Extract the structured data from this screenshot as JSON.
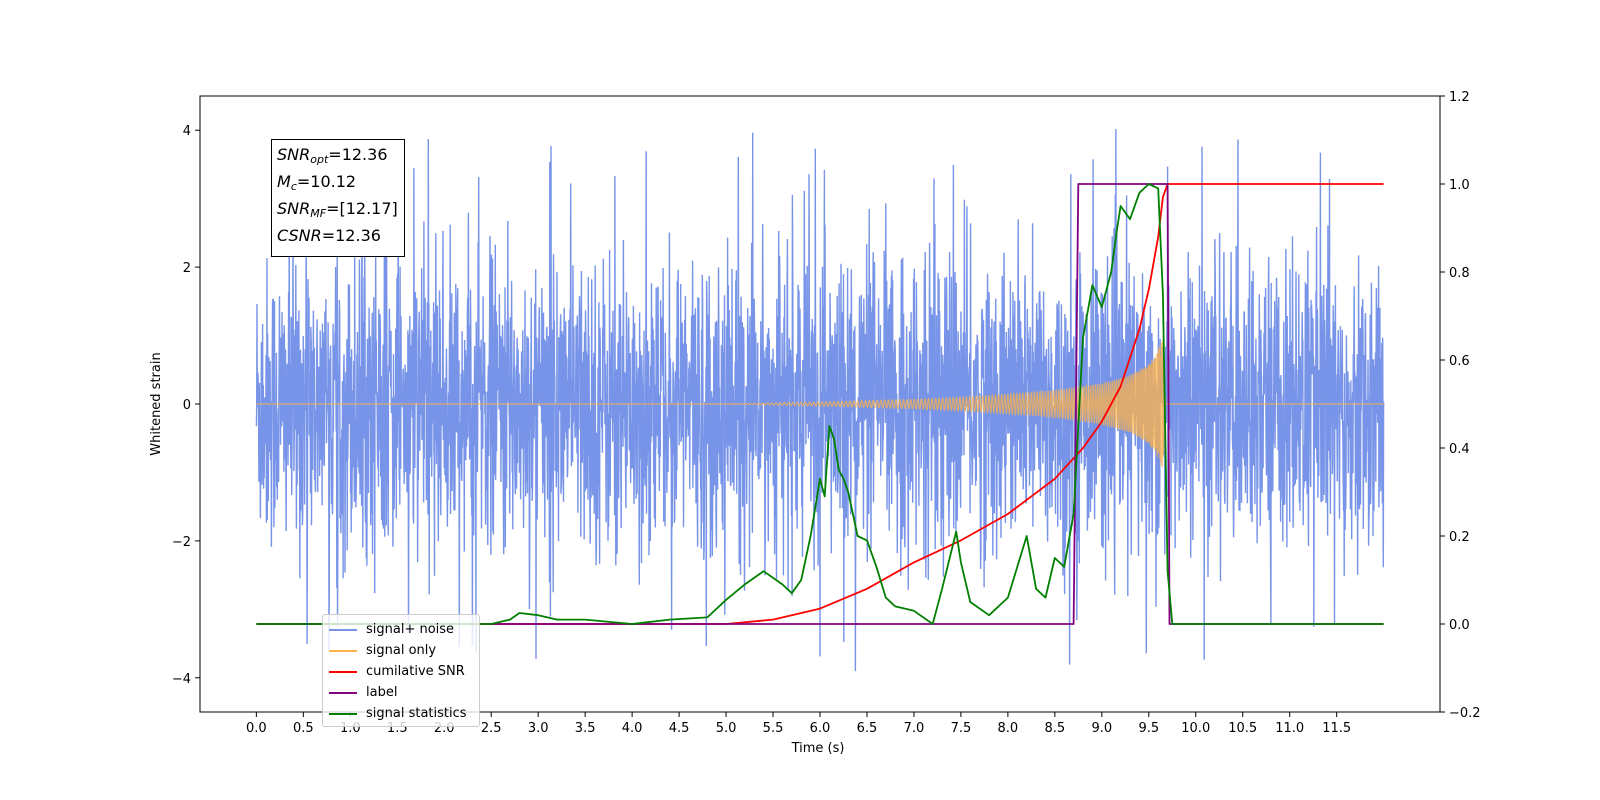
{
  "chart_data": {
    "type": "line",
    "xlabel": "Time (s)",
    "ylabel": "Whitened strain",
    "xlim": [
      -0.6,
      12.6
    ],
    "ylim": [
      -4.5,
      4.5
    ],
    "y2lim": [
      -0.2,
      1.2
    ],
    "x_ticks": [
      "0.0",
      "0.5",
      "1.0",
      "1.5",
      "2.0",
      "2.5",
      "3.0",
      "3.5",
      "4.0",
      "4.5",
      "5.0",
      "5.5",
      "6.0",
      "6.5",
      "7.0",
      "7.5",
      "8.0",
      "8.5",
      "9.0",
      "9.5",
      "10.0",
      "10.5",
      "11.0",
      "11.5"
    ],
    "y_ticks": [
      "−4",
      "−2",
      "0",
      "2",
      "4"
    ],
    "y2_ticks": [
      "−0.2",
      "0.0",
      "0.2",
      "0.4",
      "0.6",
      "0.8",
      "1.0",
      "1.2"
    ],
    "annotations": [
      {
        "name": "SNR",
        "sub": "opt",
        "value": "=12.36"
      },
      {
        "name": "M",
        "sub": "c",
        "value": "=10.12"
      },
      {
        "name": "SNR",
        "sub": "MF",
        "value": "=[12.17]"
      },
      {
        "name": "CSNR",
        "sub": "",
        "value": "=12.36"
      }
    ],
    "legend": [
      "signal+ noise",
      "signal only",
      "cumilative SNR",
      "label",
      "signal statistics"
    ],
    "legend_loc": "lower left",
    "series": [
      {
        "name": "signal+ noise",
        "axis": "left",
        "color": "#7794e8",
        "note": "whitened noise, roughly zero-mean, amplitude mostly within ±3, peaks near 4",
        "x_range": [
          0.0,
          12.0
        ],
        "peak_max": 4.1,
        "peak_min": -3.95
      },
      {
        "name": "signal only",
        "axis": "left",
        "color": "#ffb347",
        "note": "chirp, amplitude grows from ~0 at 5.5 s to ~0.95 at 9.65 s, then 0",
        "envelope": {
          "x": [
            0.0,
            5.0,
            6.0,
            7.0,
            7.5,
            8.0,
            8.5,
            9.0,
            9.3,
            9.5,
            9.6,
            9.65,
            9.68,
            12.0
          ],
          "amp": [
            0.0,
            0.0,
            0.03,
            0.07,
            0.1,
            0.14,
            0.2,
            0.3,
            0.42,
            0.58,
            0.8,
            0.95,
            0.0,
            0.0
          ]
        }
      },
      {
        "name": "cumilative SNR",
        "axis": "right",
        "color": "#ff0000",
        "x": [
          0.0,
          5.0,
          5.5,
          6.0,
          6.5,
          7.0,
          7.5,
          8.0,
          8.5,
          8.8,
          9.0,
          9.2,
          9.4,
          9.5,
          9.6,
          9.65,
          9.7,
          12.0
        ],
        "y": [
          0.0,
          0.0,
          0.01,
          0.035,
          0.08,
          0.14,
          0.19,
          0.25,
          0.33,
          0.4,
          0.46,
          0.54,
          0.67,
          0.76,
          0.88,
          0.97,
          1.0,
          1.0
        ]
      },
      {
        "name": "label",
        "axis": "right",
        "color": "#800080",
        "x": [
          0.0,
          8.7,
          8.75,
          9.7,
          9.72,
          12.0
        ],
        "y": [
          0.0,
          0.0,
          1.0,
          1.0,
          0.0,
          0.0
        ]
      },
      {
        "name": "signal statistics",
        "axis": "right",
        "color": "#008000",
        "x": [
          0.0,
          2.5,
          2.7,
          2.8,
          3.0,
          3.2,
          3.5,
          4.0,
          4.4,
          4.8,
          5.0,
          5.2,
          5.4,
          5.6,
          5.7,
          5.8,
          5.9,
          6.0,
          6.05,
          6.1,
          6.15,
          6.2,
          6.25,
          6.3,
          6.4,
          6.5,
          6.6,
          6.7,
          6.8,
          7.0,
          7.2,
          7.3,
          7.45,
          7.5,
          7.6,
          7.8,
          8.0,
          8.2,
          8.3,
          8.4,
          8.5,
          8.6,
          8.7,
          8.8,
          8.9,
          9.0,
          9.1,
          9.15,
          9.2,
          9.3,
          9.4,
          9.5,
          9.6,
          9.65,
          9.7,
          9.75,
          12.0
        ],
        "y": [
          0.0,
          0.0,
          0.01,
          0.025,
          0.02,
          0.01,
          0.01,
          0.0,
          0.01,
          0.015,
          0.055,
          0.09,
          0.12,
          0.09,
          0.07,
          0.1,
          0.2,
          0.33,
          0.29,
          0.45,
          0.42,
          0.35,
          0.33,
          0.3,
          0.2,
          0.19,
          0.13,
          0.06,
          0.04,
          0.03,
          0.0,
          0.08,
          0.21,
          0.14,
          0.05,
          0.02,
          0.06,
          0.2,
          0.08,
          0.06,
          0.15,
          0.13,
          0.25,
          0.65,
          0.77,
          0.72,
          0.8,
          0.88,
          0.95,
          0.92,
          0.98,
          1.0,
          0.99,
          0.75,
          0.12,
          0.0,
          0.0
        ]
      }
    ]
  }
}
